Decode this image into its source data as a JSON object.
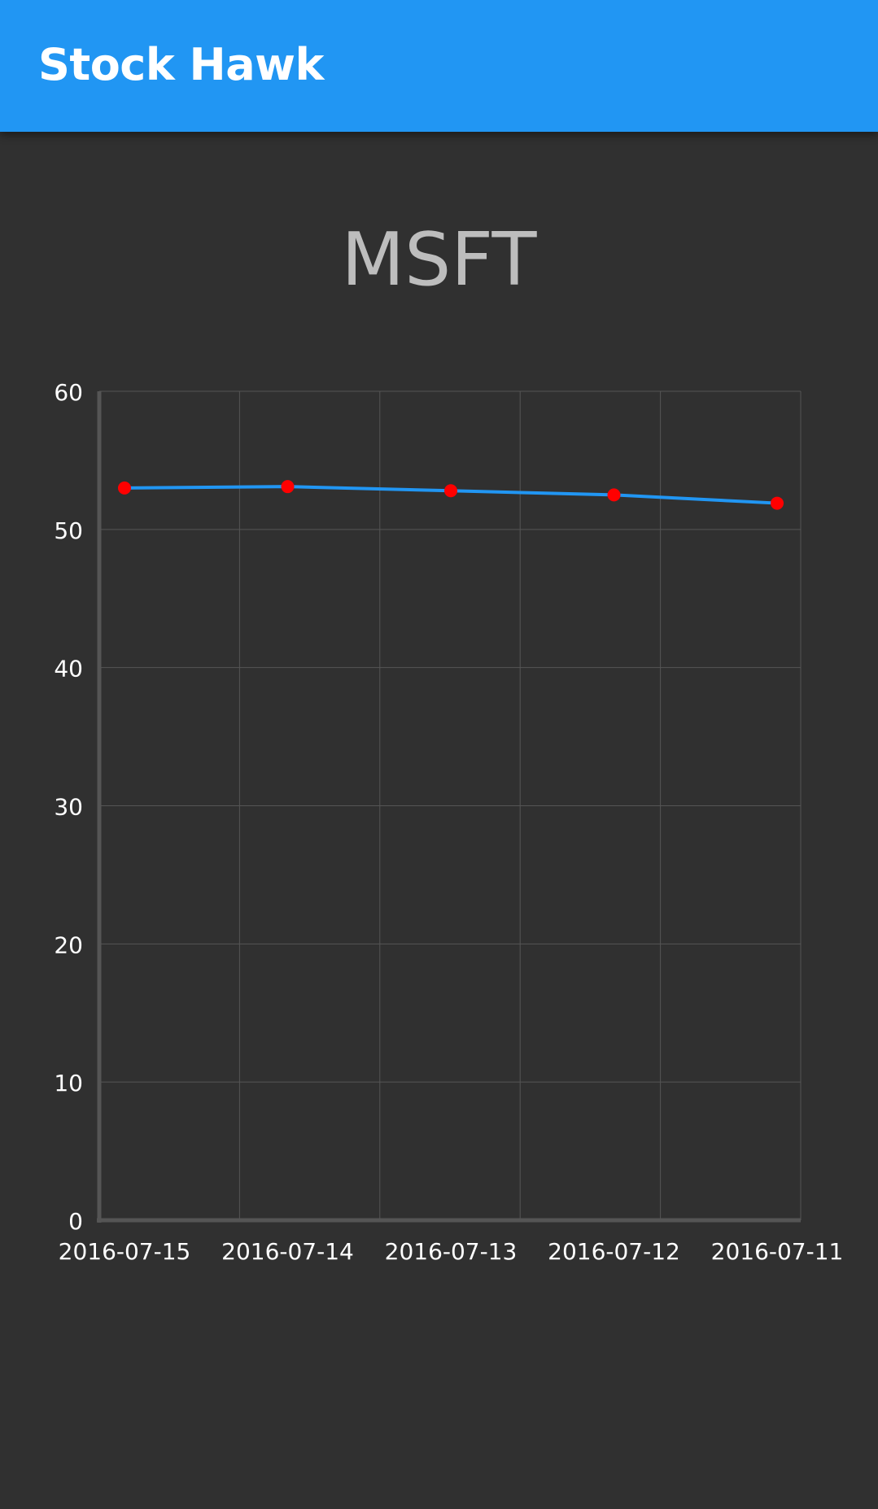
{
  "app_bar": {
    "title": "Stock Hawk"
  },
  "stock": {
    "symbol": "MSFT"
  },
  "colors": {
    "app_bar": "#2196F3",
    "background": "#303030",
    "line": "#2196F3",
    "point": "#FF0000",
    "grid": "#555555",
    "axis": "#555555"
  },
  "chart_data": {
    "type": "line",
    "categories": [
      "2016-07-15",
      "2016-07-14",
      "2016-07-13",
      "2016-07-12",
      "2016-07-11"
    ],
    "series": [
      {
        "values": [
          53.0,
          53.1,
          52.8,
          52.5,
          51.9
        ]
      }
    ],
    "ylim": [
      0,
      60
    ],
    "y_ticks": [
      0,
      10,
      20,
      30,
      40,
      50,
      60
    ],
    "grid": true,
    "legend": "none"
  }
}
